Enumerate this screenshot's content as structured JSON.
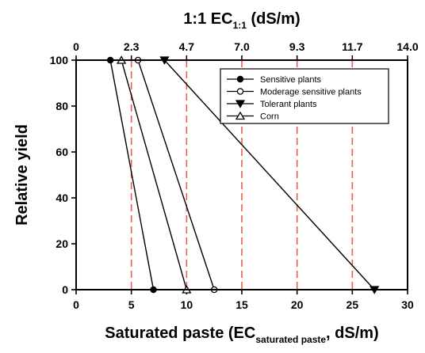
{
  "chart_data": {
    "type": "line",
    "top_axis": {
      "label_main": "1:1 EC",
      "label_sub": "1:1",
      "label_unit": " (dS/m)",
      "tick_labels": [
        "0",
        "2.3",
        "4.7",
        "7.0",
        "9.3",
        "11.7",
        "14.0"
      ]
    },
    "xlabel": {
      "main": "Saturated paste (EC",
      "sub": "saturated paste",
      "tail": ", dS/m)"
    },
    "ylabel": "Relative yield",
    "xlim": [
      0,
      30
    ],
    "ylim": [
      0,
      100
    ],
    "x_ticks": [
      0,
      5,
      10,
      15,
      20,
      25,
      30
    ],
    "y_ticks": [
      0,
      20,
      40,
      60,
      80,
      100
    ],
    "reference_lines": {
      "x": [
        5,
        10,
        15,
        20,
        25
      ],
      "color": "#e8604a",
      "style": "dashed"
    },
    "legend_position": "top-right",
    "series": [
      {
        "name": "Sensitive plants",
        "marker": "circle-filled",
        "x": [
          3.1,
          7.0
        ],
        "y": [
          100,
          0
        ]
      },
      {
        "name": "Moderage sensitive plants",
        "marker": "circle-open",
        "x": [
          5.6,
          12.5
        ],
        "y": [
          100,
          0
        ]
      },
      {
        "name": "Tolerant plants",
        "marker": "triangle-down-filled",
        "x": [
          8.0,
          27.0
        ],
        "y": [
          100,
          0
        ]
      },
      {
        "name": "Corn",
        "marker": "triangle-up-open",
        "x": [
          4.1,
          10.0
        ],
        "y": [
          100,
          0
        ]
      }
    ],
    "marker_points": [
      {
        "series": 0,
        "x": 3.1,
        "y": 100
      },
      {
        "series": 0,
        "x": 7.0,
        "y": 0
      },
      {
        "series": 1,
        "x": 5.6,
        "y": 100
      },
      {
        "series": 1,
        "x": 12.5,
        "y": 0
      },
      {
        "series": 2,
        "x": 8.0,
        "y": 100
      },
      {
        "series": 2,
        "x": 27.0,
        "y": 0
      },
      {
        "series": 3,
        "x": 4.1,
        "y": 100
      },
      {
        "series": 3,
        "x": 10.0,
        "y": 0
      }
    ]
  }
}
